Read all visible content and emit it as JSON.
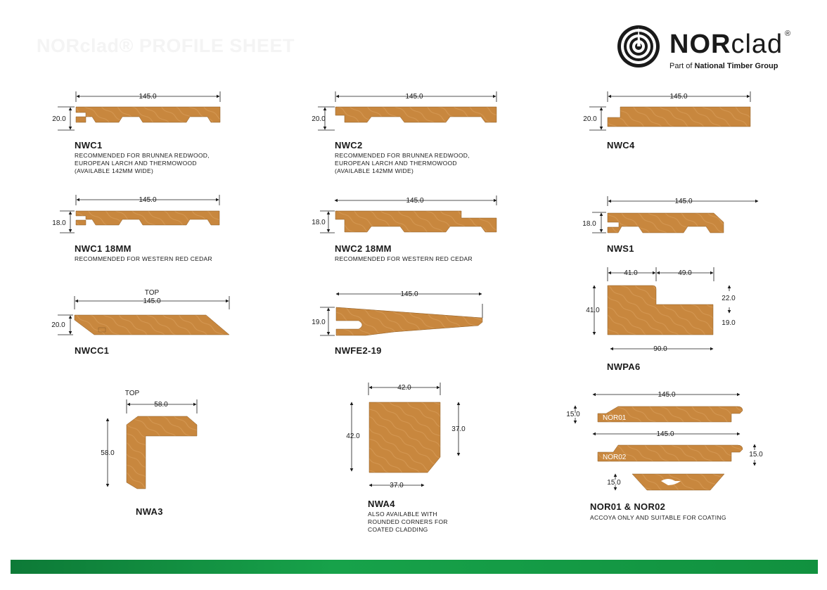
{
  "page": {
    "watermark_title": "NORclad® PROFILE SHEET",
    "brand_colors": {
      "timber": "#C8873E",
      "timber_grain": "#D9A064",
      "footer_green": "#14963F"
    }
  },
  "logo": {
    "brand_bold": "NOR",
    "brand_light": "clad",
    "registered": "®",
    "sub_prefix": "Part of ",
    "sub_bold": "National Timber Group",
    "icon": "log-cross-section-icon"
  },
  "profiles": [
    {
      "id": "nwc1",
      "name": "NWC1",
      "note": [
        "RECOMMENDED FOR BRUNNEA REDWOOD,",
        "EUROPEAN LARCH AND THERMOWOOD",
        "(AVAILABLE 142MM WIDE)"
      ],
      "dims": {
        "width": "145.0",
        "thickness": "20.0"
      }
    },
    {
      "id": "nwc2",
      "name": "NWC2",
      "note": [
        "RECOMMENDED FOR BRUNNEA REDWOOD,",
        "EUROPEAN LARCH AND THERMOWOOD",
        "(AVAILABLE 142MM WIDE)"
      ],
      "dims": {
        "width": "145.0",
        "thickness": "20.0"
      }
    },
    {
      "id": "nwc4",
      "name": "NWC4",
      "note": [],
      "dims": {
        "width": "145.0",
        "thickness": "20.0"
      }
    },
    {
      "id": "nwc1-18",
      "name": "NWC1 18MM",
      "note": [
        "RECOMMENDED FOR WESTERN RED CEDAR"
      ],
      "dims": {
        "width": "145.0",
        "thickness": "18.0"
      }
    },
    {
      "id": "nwc2-18",
      "name": "NWC2 18MM",
      "note": [
        "RECOMMENDED FOR WESTERN RED CEDAR"
      ],
      "dims": {
        "width": "145.0",
        "thickness": "18.0"
      }
    },
    {
      "id": "nws1",
      "name": "NWS1",
      "note": [],
      "dims": {
        "width": "145.0",
        "thickness": "18.0"
      }
    },
    {
      "id": "nwcc1",
      "name": "NWCC1",
      "note": [],
      "dims": {
        "width": "145.0",
        "thickness": "20.0",
        "top": "TOP"
      }
    },
    {
      "id": "nwfe2-19",
      "name": "NWFE2-19",
      "note": [],
      "dims": {
        "width": "145.0",
        "thickness": "19.0"
      }
    },
    {
      "id": "nwpa6",
      "name": "NWPA6",
      "note": [],
      "dims": {
        "top_left": "41.0",
        "top_right": "49.0",
        "height": "41.0",
        "right_top": "22.0",
        "right_bottom": "19.0",
        "width": "90.0"
      }
    },
    {
      "id": "nwa3",
      "name": "NWA3",
      "note": [],
      "dims": {
        "top": "TOP",
        "width": "58.0",
        "height": "58.0"
      }
    },
    {
      "id": "nwa4",
      "name": "NWA4",
      "note": [
        "ALSO AVAILABLE WITH",
        "ROUNDED CORNERS FOR",
        "COATED CLADDING"
      ],
      "dims": {
        "top": "42.0",
        "left": "42.0",
        "right": "37.0",
        "bottom": "37.0"
      }
    },
    {
      "id": "nor01-02",
      "name": "NOR01 & NOR02",
      "note": [
        "ACCOYA ONLY AND SUITABLE FOR COATING"
      ],
      "dims": {
        "width1": "145.0",
        "thick1": "15.0",
        "tag1": "NOR01",
        "width2": "145.0",
        "thick2": "15.0",
        "tag2": "NOR02",
        "thick3": "15.0"
      }
    }
  ]
}
